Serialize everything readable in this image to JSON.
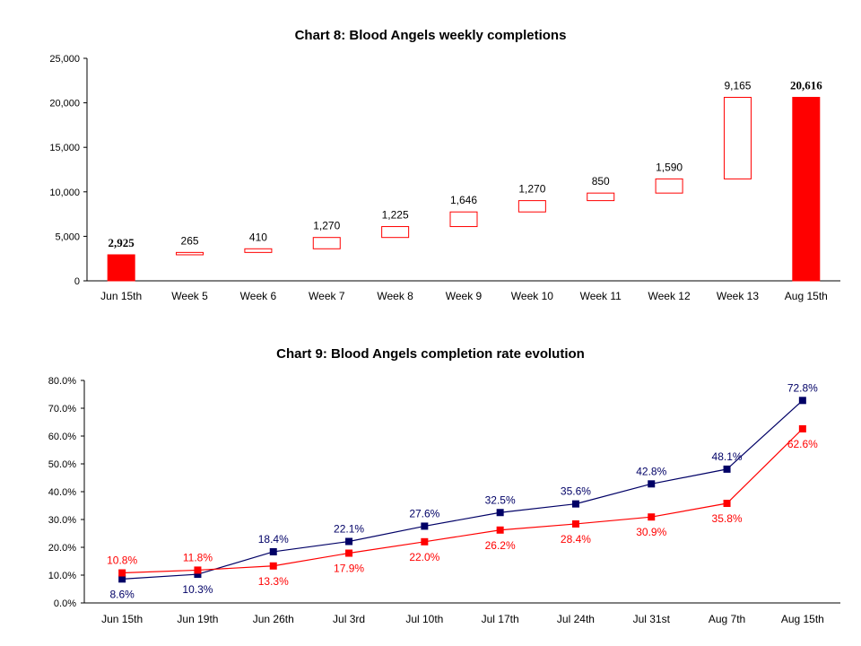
{
  "chart_data": [
    {
      "type": "bar",
      "subtype": "waterfall",
      "title": "Chart 8: Blood Angels weekly completions",
      "xlabel": "",
      "ylabel": "",
      "ylim": [
        0,
        25000
      ],
      "yticks": [
        "0",
        "5,000",
        "10,000",
        "15,000",
        "20,000",
        "25,000"
      ],
      "categories": [
        "Jun 15th",
        "Week 5",
        "Week 6",
        "Week 7",
        "Week 8",
        "Week 9",
        "Week 10",
        "Week 11",
        "Week 12",
        "Week 13",
        "Aug 15th"
      ],
      "values": [
        2925,
        265,
        410,
        1270,
        1225,
        1646,
        1270,
        850,
        1590,
        9165,
        20616
      ],
      "data_labels": [
        "2,925",
        "265",
        "410",
        "1,270",
        "1,225",
        "1,646",
        "1,270",
        "850",
        "1,590",
        "9,165",
        "20,616"
      ],
      "bar_kind": [
        "total",
        "delta",
        "delta",
        "delta",
        "delta",
        "delta",
        "delta",
        "delta",
        "delta",
        "delta",
        "total"
      ],
      "bar_color": "#ff0000",
      "grid": false,
      "legend": "none"
    },
    {
      "type": "line",
      "title": "Chart 9: Blood Angels completion rate evolution",
      "xlabel": "",
      "ylabel": "",
      "ylim": [
        0,
        80
      ],
      "yticks": [
        "0.0%",
        "10.0%",
        "20.0%",
        "30.0%",
        "40.0%",
        "50.0%",
        "60.0%",
        "70.0%",
        "80.0%"
      ],
      "categories": [
        "Jun 15th",
        "Jun 19th",
        "Jun 26th",
        "Jul 3rd",
        "Jul 10th",
        "Jul 17th",
        "Jul 24th",
        "Jul 31st",
        "Aug 7th",
        "Aug 15th"
      ],
      "series": [
        {
          "color": "#000066",
          "values": [
            8.6,
            10.3,
            18.4,
            22.1,
            27.6,
            32.5,
            35.6,
            42.8,
            48.1,
            72.8
          ],
          "labels": [
            "8.6%",
            "10.3%",
            "18.4%",
            "22.1%",
            "27.6%",
            "32.5%",
            "35.6%",
            "42.8%",
            "48.1%",
            "72.8%"
          ],
          "label_pos": [
            "below",
            "below",
            "above",
            "above",
            "above",
            "above",
            "above",
            "above",
            "above",
            "above"
          ]
        },
        {
          "color": "#ff0000",
          "values": [
            10.8,
            11.8,
            13.3,
            17.9,
            22.0,
            26.2,
            28.4,
            30.9,
            35.8,
            62.6
          ],
          "labels": [
            "10.8%",
            "11.8%",
            "13.3%",
            "17.9%",
            "22.0%",
            "26.2%",
            "28.4%",
            "30.9%",
            "35.8%",
            "62.6%"
          ],
          "label_pos": [
            "above",
            "above",
            "below",
            "below",
            "below",
            "below",
            "below",
            "below",
            "below",
            "below"
          ]
        }
      ],
      "grid": false,
      "legend": "none"
    }
  ]
}
